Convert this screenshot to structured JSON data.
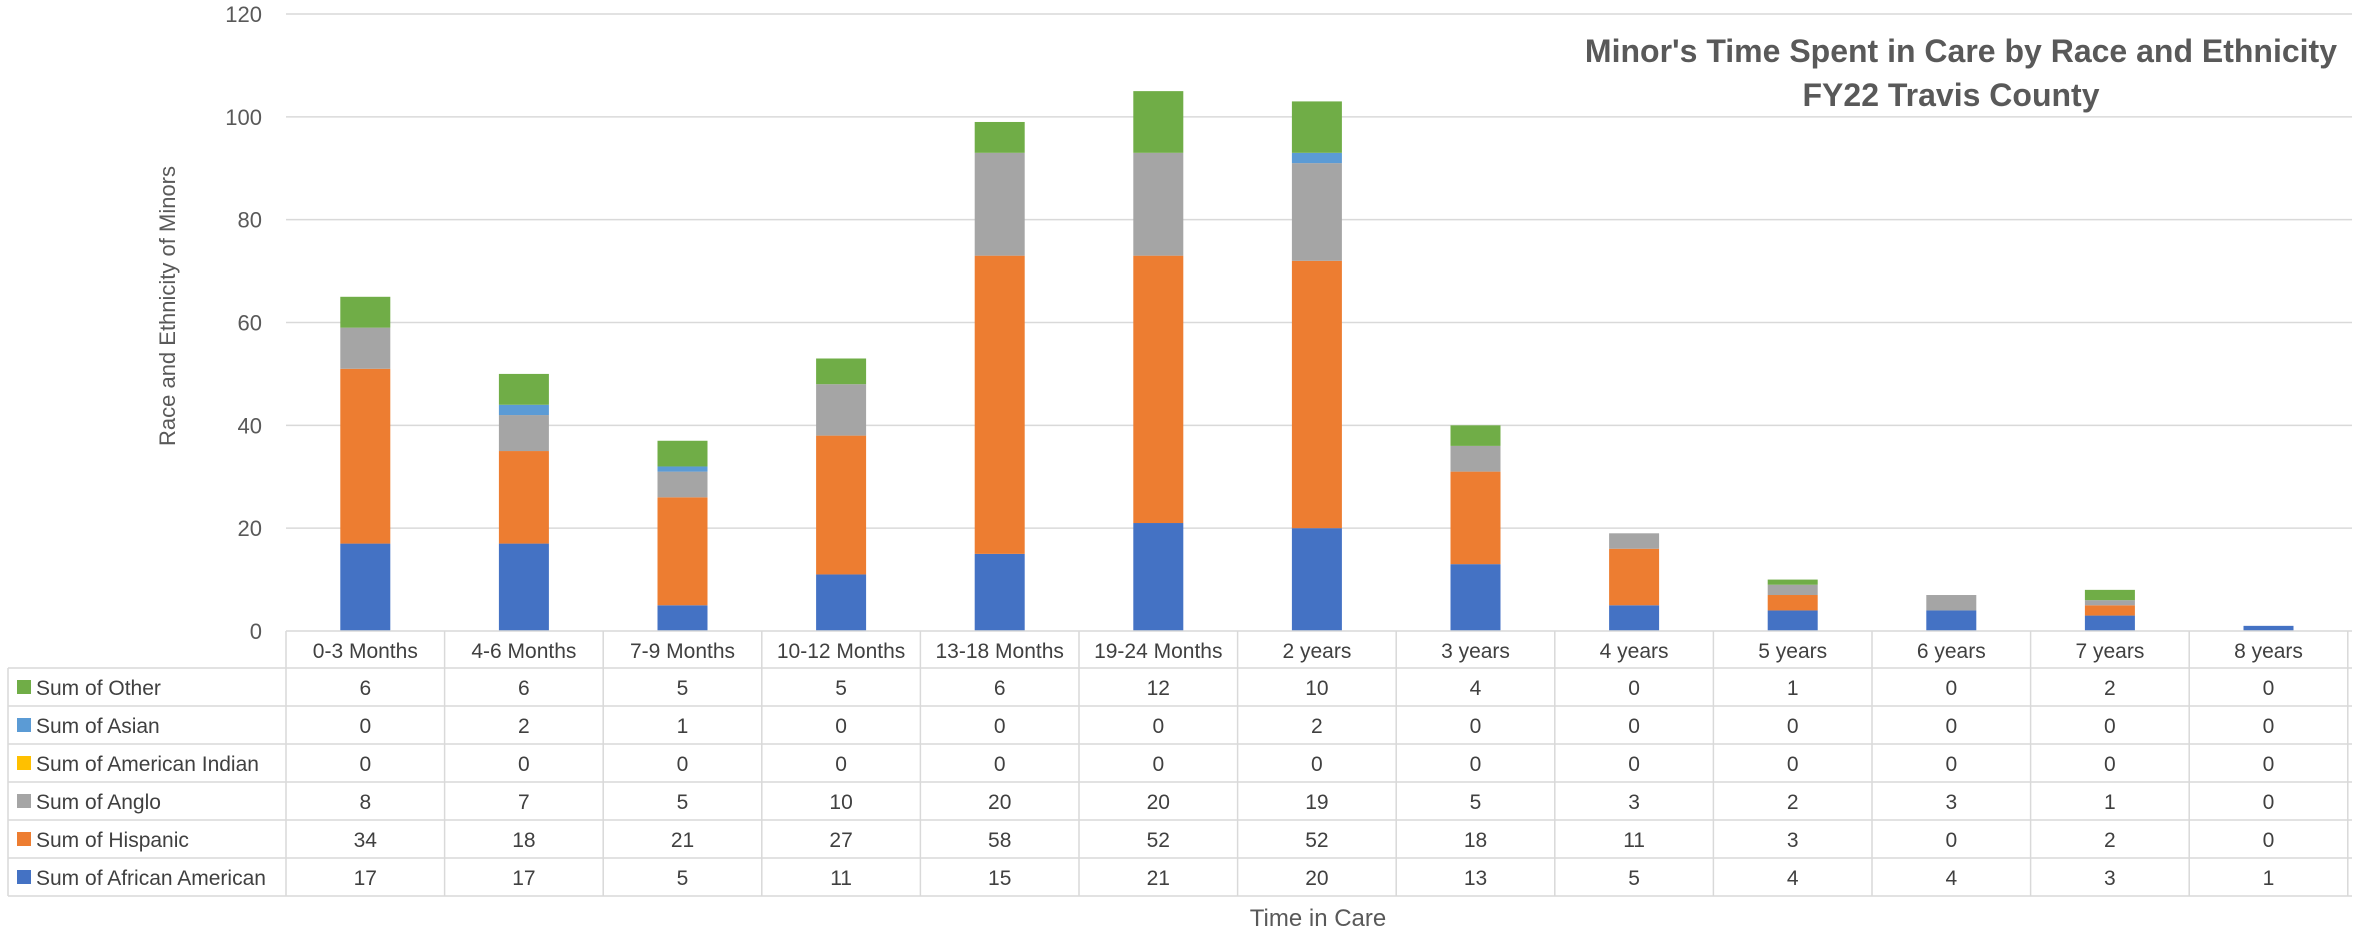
{
  "chart_data": {
    "type": "bar",
    "stacked": true,
    "title": "Minor's Time Spent in Care by Race and Ethnicity",
    "subtitle": "FY22 Travis County",
    "xlabel": "Time in Care",
    "ylabel": "Race and Ethnicity of Minors",
    "ylim": [
      0,
      120
    ],
    "yticks": [
      0,
      20,
      40,
      60,
      80,
      100,
      120
    ],
    "grid": true,
    "legend": "data-table-left",
    "categories": [
      "0-3 Months",
      "4-6 Months",
      "7-9 Months",
      "10-12 Months",
      "13-18 Months",
      "19-24 Months",
      "2 years",
      "3 years",
      "4 years",
      "5 years",
      "6 years",
      "7 years",
      "8 years"
    ],
    "series": [
      {
        "name": "Sum of African American",
        "color": "#4472C4",
        "values": [
          17,
          17,
          5,
          11,
          15,
          21,
          20,
          13,
          5,
          4,
          4,
          3,
          1
        ]
      },
      {
        "name": "Sum of Hispanic",
        "color": "#ED7D31",
        "values": [
          34,
          18,
          21,
          27,
          58,
          52,
          52,
          18,
          11,
          3,
          0,
          2,
          0
        ]
      },
      {
        "name": "Sum of Anglo",
        "color": "#A5A5A5",
        "values": [
          8,
          7,
          5,
          10,
          20,
          20,
          19,
          5,
          3,
          2,
          3,
          1,
          0
        ]
      },
      {
        "name": "Sum of American Indian",
        "color": "#FFC000",
        "values": [
          0,
          0,
          0,
          0,
          0,
          0,
          0,
          0,
          0,
          0,
          0,
          0,
          0
        ]
      },
      {
        "name": "Sum of Asian",
        "color": "#5B9BD5",
        "values": [
          0,
          2,
          1,
          0,
          0,
          0,
          2,
          0,
          0,
          0,
          0,
          0,
          0
        ]
      },
      {
        "name": "Sum of Other",
        "color": "#70AD47",
        "values": [
          6,
          6,
          5,
          5,
          6,
          12,
          10,
          4,
          0,
          1,
          0,
          2,
          0
        ]
      }
    ],
    "table_row_order": [
      "Sum of Other",
      "Sum of Asian",
      "Sum of American Indian",
      "Sum of Anglo",
      "Sum of Hispanic",
      "Sum of African American"
    ]
  }
}
